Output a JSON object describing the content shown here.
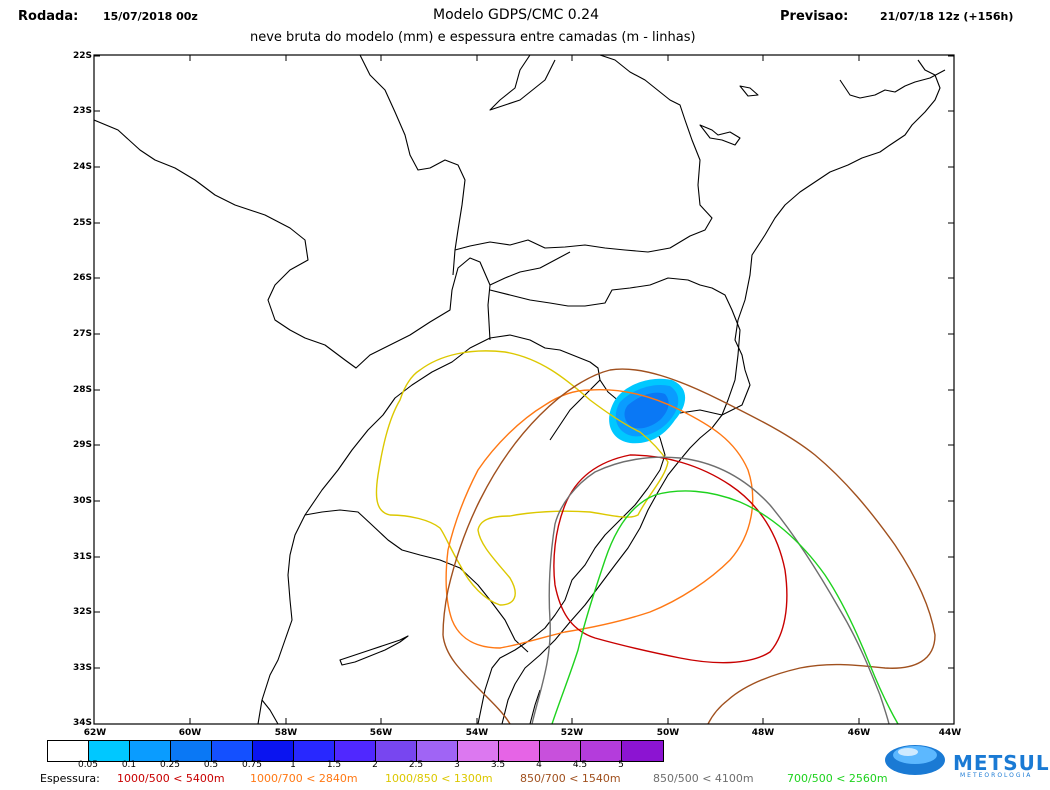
{
  "header": {
    "rodada_label": "Rodada:",
    "rodada_value": "15/07/2018 00z",
    "title": "Modelo GDPS/CMC 0.24",
    "previsao_label": "Previsao:",
    "previsao_value": "21/07/18 12z (+156h)",
    "subtitle": "neve bruta do modelo (mm) e espessura entre camadas (m - linhas)"
  },
  "map": {
    "lat_labels": [
      "22S",
      "23S",
      "24S",
      "25S",
      "26S",
      "27S",
      "28S",
      "29S",
      "30S",
      "31S",
      "32S",
      "33S",
      "34S"
    ],
    "lon_labels": [
      "62W",
      "60W",
      "58W",
      "56W",
      "54W",
      "52W",
      "50W",
      "48W",
      "46W",
      "44W"
    ]
  },
  "colorbar": {
    "colors": [
      "#ffffff",
      "#00c8ff",
      "#0a9cff",
      "#0a78f5",
      "#1450ff",
      "#0a14f0",
      "#2828ff",
      "#5028ff",
      "#7846f0",
      "#a064f5",
      "#dc78f0",
      "#e664e6",
      "#c850dc",
      "#b43cdc",
      "#8c14d2"
    ],
    "labels": [
      "0.05",
      "0.1",
      "0.25",
      "0.5",
      "0.75",
      "1",
      "1.5",
      "2",
      "2.5",
      "3",
      "3.5",
      "4",
      "4.5",
      "5"
    ]
  },
  "legend": {
    "prefix": "Espessura:",
    "items": [
      {
        "text": "1000/500 < 5400m",
        "color": "#c80000"
      },
      {
        "text": "1000/700 < 2840m",
        "color": "#ff7814"
      },
      {
        "text": "1000/850 < 1300m",
        "color": "#dcc800"
      },
      {
        "text": "850/700 < 1540m",
        "color": "#a0501e"
      },
      {
        "text": "850/500 < 4100m",
        "color": "#6e6e6e"
      },
      {
        "text": "700/500 < 2560m",
        "color": "#1ed21e"
      }
    ]
  },
  "logo": {
    "name": "METSUL",
    "tagline": "METEOROLOGIA"
  }
}
